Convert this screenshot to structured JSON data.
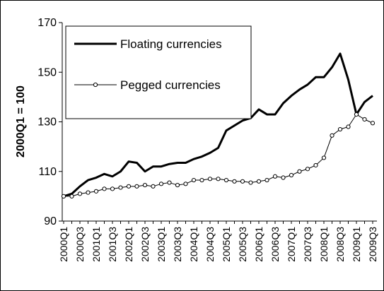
{
  "chart_data": {
    "type": "line",
    "ylabel": "2000Q1 = 100",
    "categories": [
      "2000Q1",
      null,
      "2000Q3",
      null,
      "2001Q1",
      null,
      "2001Q3",
      null,
      "2002Q1",
      null,
      "2002Q3",
      null,
      "2003Q1",
      null,
      "2003Q3",
      null,
      "2004Q1",
      null,
      "2004Q3",
      null,
      "2005Q1",
      null,
      "2005Q3",
      null,
      "2006Q1",
      null,
      "2006Q3",
      null,
      "2007Q1",
      null,
      "2007Q3",
      null,
      "2008Q1",
      null,
      "2008Q3",
      null,
      "2009Q1",
      null,
      "2009Q3"
    ],
    "series": [
      {
        "name": "Floating currencies",
        "color": "#000000",
        "marker": "none",
        "values": [
          100,
          101,
          104,
          106.5,
          107.5,
          109,
          108,
          110,
          114,
          113.5,
          110,
          112,
          112,
          113,
          113.5,
          113.5,
          115,
          116,
          117.5,
          119.5,
          126.5,
          128.5,
          130.5,
          131.5,
          135,
          133,
          133,
          137.5,
          140.5,
          143,
          145,
          148,
          148,
          152,
          157.5,
          147,
          133,
          138,
          140.5
        ]
      },
      {
        "name": "Pegged currencies",
        "color": "#000000",
        "marker": "circle",
        "values": [
          100,
          100,
          101,
          101.5,
          102,
          103,
          103,
          103.5,
          104,
          104,
          104.5,
          104,
          105,
          105.5,
          104.5,
          105,
          106.5,
          106.5,
          107,
          107,
          106.5,
          106,
          106,
          105.5,
          106,
          106.5,
          108,
          107.5,
          108.5,
          110,
          111,
          112.5,
          115.5,
          124.5,
          127,
          128,
          133,
          131,
          129.5
        ]
      }
    ],
    "ylim": [
      90,
      170
    ],
    "yticks": [
      90,
      110,
      130,
      150,
      170
    ],
    "grid": false,
    "legend": "upper left"
  }
}
